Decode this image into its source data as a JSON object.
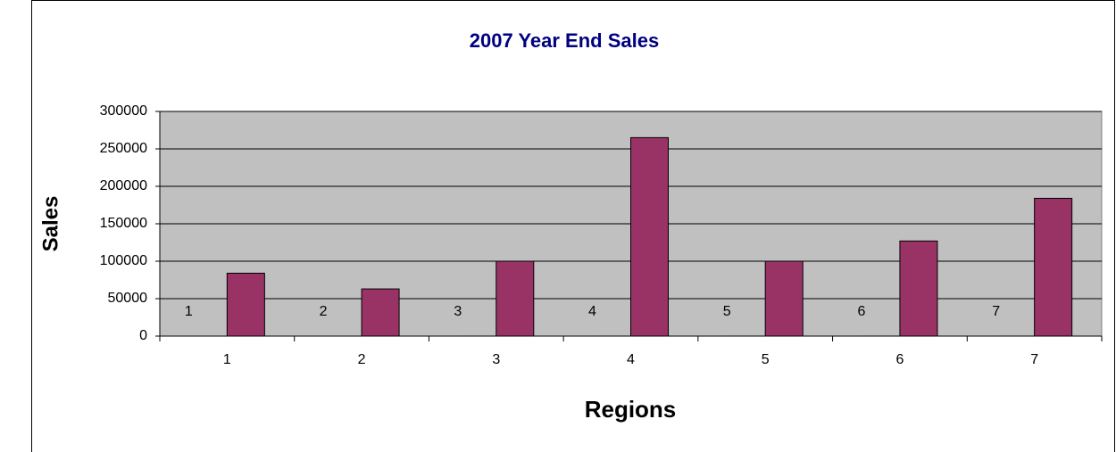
{
  "chart_data": {
    "type": "bar",
    "title": "2007 Year End Sales",
    "x_label": "Regions",
    "y_label": "Sales",
    "categories": [
      "1",
      "2",
      "3",
      "4",
      "5",
      "6",
      "7"
    ],
    "series": [
      {
        "color": "#9999ff",
        "values": [
          1,
          2,
          3,
          4,
          5,
          6,
          7
        ],
        "data_labels": true
      },
      {
        "color": "#993366",
        "values": [
          84000,
          63000,
          100000,
          265000,
          100000,
          127000,
          184000
        ],
        "data_labels": false
      }
    ],
    "ylim": [
      0,
      300000
    ],
    "yticks": [
      0,
      50000,
      100000,
      150000,
      200000,
      250000,
      300000
    ],
    "grid": true,
    "plot_background": "#c0c0c0",
    "legend": false
  }
}
